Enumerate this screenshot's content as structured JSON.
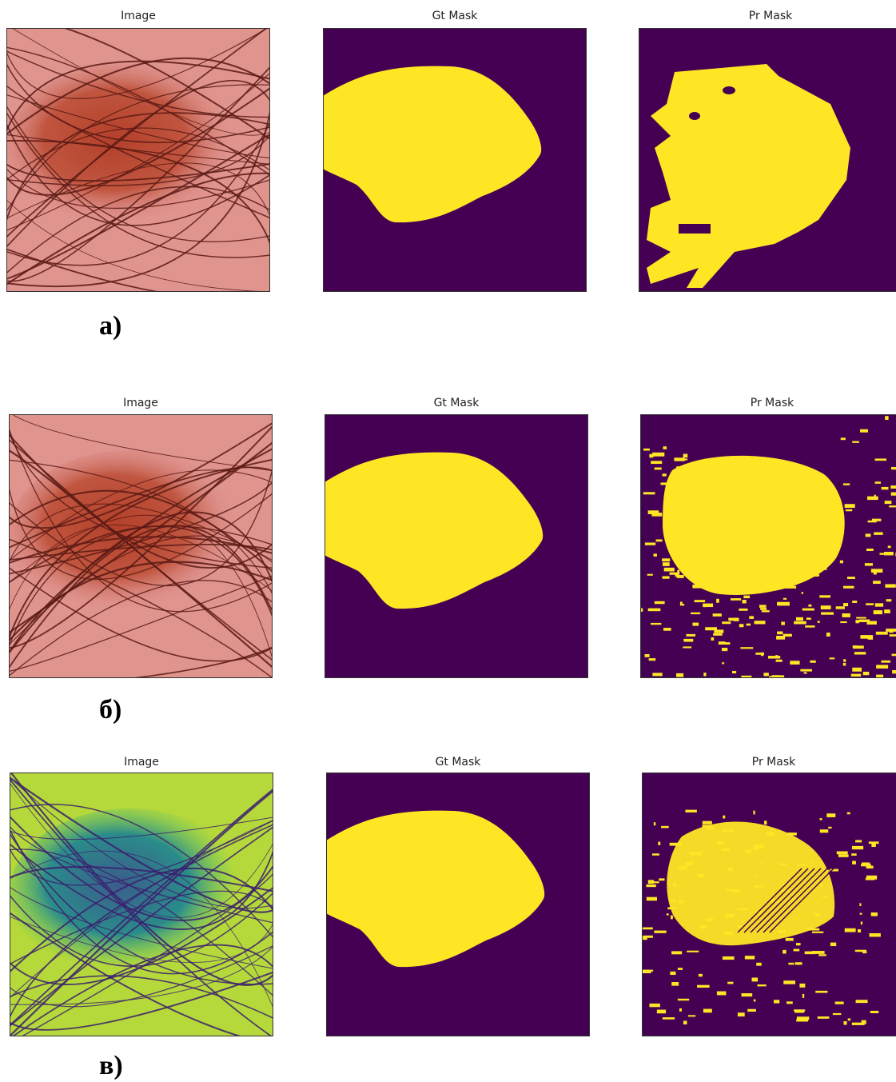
{
  "rows": [
    {
      "label": "а)",
      "panels": [
        {
          "title": "Image"
        },
        {
          "title": "Gt Mask"
        },
        {
          "title": "Pr Mask"
        }
      ]
    },
    {
      "label": "б)",
      "panels": [
        {
          "title": "Image"
        },
        {
          "title": "Gt Mask"
        },
        {
          "title": "Pr Mask"
        }
      ]
    },
    {
      "label": "в)",
      "panels": [
        {
          "title": "Image"
        },
        {
          "title": "Gt Mask"
        },
        {
          "title": "Pr Mask"
        }
      ]
    }
  ]
}
